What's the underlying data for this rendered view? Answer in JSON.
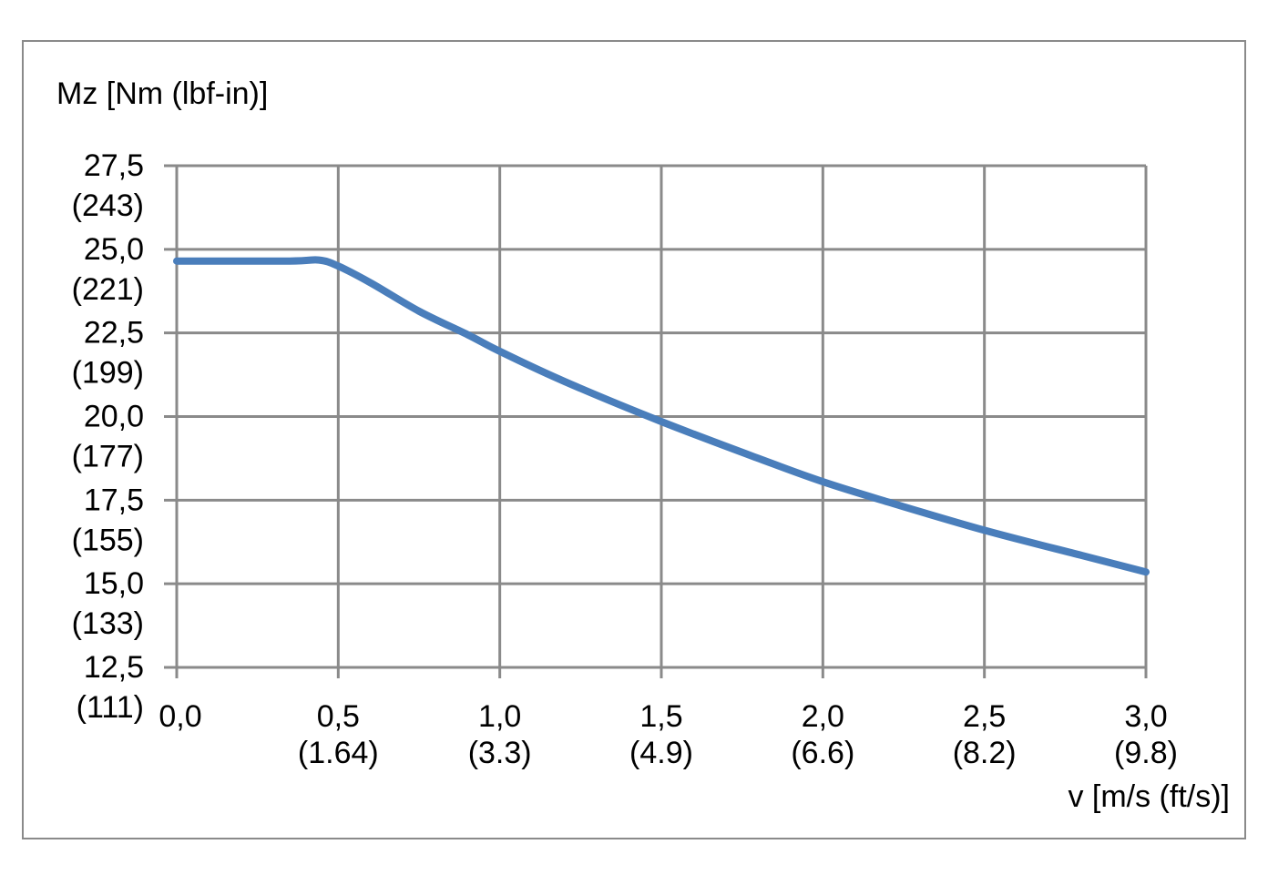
{
  "chart_data": {
    "type": "line",
    "ylabel": "Mz [Nm (lbf-in)]",
    "xlabel": "v [m/s (ft/s)]",
    "xlim": [
      0,
      3
    ],
    "ylim": [
      12.5,
      27.5
    ],
    "grid": true,
    "x_ticks": [
      {
        "value": 0.0,
        "label": "0,0",
        "sublabel": ""
      },
      {
        "value": 0.5,
        "label": "0,5",
        "sublabel": "(1.64)"
      },
      {
        "value": 1.0,
        "label": "1,0",
        "sublabel": "(3.3)"
      },
      {
        "value": 1.5,
        "label": "1,5",
        "sublabel": "(4.9)"
      },
      {
        "value": 2.0,
        "label": "2,0",
        "sublabel": "(6.6)"
      },
      {
        "value": 2.5,
        "label": "2,5",
        "sublabel": "(8.2)"
      },
      {
        "value": 3.0,
        "label": "3,0",
        "sublabel": "(9.8)"
      }
    ],
    "y_ticks": [
      {
        "value": 27.5,
        "label": "27,5",
        "sublabel": "(243)"
      },
      {
        "value": 25.0,
        "label": "25,0",
        "sublabel": "(221)"
      },
      {
        "value": 22.5,
        "label": "22,5",
        "sublabel": "(199)"
      },
      {
        "value": 20.0,
        "label": "20,0",
        "sublabel": "(177)"
      },
      {
        "value": 17.5,
        "label": "17,5",
        "sublabel": "(155)"
      },
      {
        "value": 15.0,
        "label": "15,0",
        "sublabel": "(133)"
      },
      {
        "value": 12.5,
        "label": "12,5",
        "sublabel": "(111)"
      }
    ],
    "series": [
      {
        "color": "#4a7ebb",
        "x": [
          0,
          0.35,
          0.44,
          0.5,
          0.6,
          0.75,
          0.9,
          1.0,
          1.2,
          1.5,
          1.8,
          2.0,
          2.2,
          2.5,
          2.8,
          3.0
        ],
        "y": [
          24.65,
          24.65,
          24.68,
          24.5,
          24.0,
          23.15,
          22.45,
          21.95,
          21.05,
          19.85,
          18.75,
          18.05,
          17.45,
          16.6,
          15.85,
          15.35
        ]
      }
    ]
  }
}
